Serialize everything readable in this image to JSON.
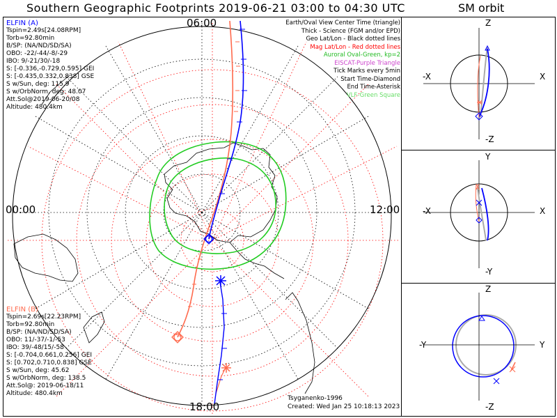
{
  "title": "Southern Geographic Footprints 2019-06-21 03:00 to 04:30 UTC",
  "sm_title": "SM orbit",
  "hours": {
    "top": "06:00",
    "left": "00:00",
    "right": "12:00",
    "bottom": "18:00"
  },
  "elfin_a": {
    "name": "ELFIN (A)",
    "color": "#0000ff",
    "lines": [
      "Tspin=2.49s[24.08RPM]",
      "Torb=92.80min",
      "B/SP: (NA/ND/SD/SA)",
      "OBO: -22/-44/-8/-29",
      "IBO: 9/-21/30/-18",
      "S: [-0.336,-0.729,0.595] GEI",
      "S: [-0.435,0.332,0.838] GSE",
      "S w/Sun, deg: 115.9",
      "S w/OrbNorm, deg: 48.07",
      "Att.Sol@2019-06-20/08",
      "Altitude: 480.4km"
    ]
  },
  "elfin_b": {
    "name": "ELFIN (B)",
    "color": "#ff6a4d",
    "lines": [
      "Tspin=2.69s[22.23RPM]",
      "Torb=92.80min",
      "B/SP: (NA/ND/SD/SA)",
      "OBO: 11/-37/-1/-53",
      "IBO: 39/-48/15/-58",
      "S: [-0.704,0.661,0.256] GEI",
      "S: [0.702,0.710,0.838] GSE",
      "S w/Sun, deg: 45.62",
      "S w/OrbNorm, deg: 138.5",
      "Att.Sol@: 2019-06-18/11",
      "Altitude: 480.4km"
    ]
  },
  "legend": [
    {
      "text": "Earth/Oval View Center Time (triangle)",
      "color": "#000000"
    },
    {
      "text": "Thick - Science (FGM and/or EPD)",
      "color": "#000000"
    },
    {
      "text": "Geo Lat/Lon - Black dotted lines",
      "color": "#000000"
    },
    {
      "text": "Mag Lat/Lon - Red dotted lines",
      "color": "#ff0000"
    },
    {
      "text": "Auroral Oval-Green, kp=2",
      "color": "#22bb22"
    },
    {
      "text": "EISCAT-Purple Triangle",
      "color": "#cc44cc"
    },
    {
      "text": "Tick Marks every 5min",
      "color": "#000000"
    },
    {
      "text": "Start Time-Diamond",
      "color": "#000000"
    },
    {
      "text": "End Time-Asterisk",
      "color": "#000000"
    },
    {
      "text": "VLF-Green Square",
      "color": "#66dd66"
    }
  ],
  "footer": {
    "model": "Tsyganenko-1996",
    "created": "Created: Wed Jan 25 10:18:13 2023"
  },
  "sm_panels": [
    {
      "top": "Z",
      "bottom": "-Z",
      "left": "-X",
      "right": "X"
    },
    {
      "top": "Y",
      "bottom": "-Y",
      "left": "-X",
      "right": "X"
    },
    {
      "top": "Z",
      "bottom": "-Z",
      "left": "-Y",
      "right": "Y"
    }
  ],
  "colors": {
    "geo_grid": "#000000",
    "mag_grid": "#ff0000",
    "oval": "#22cc22",
    "track_a": "#0000ff",
    "track_b": "#ff6a4d"
  }
}
